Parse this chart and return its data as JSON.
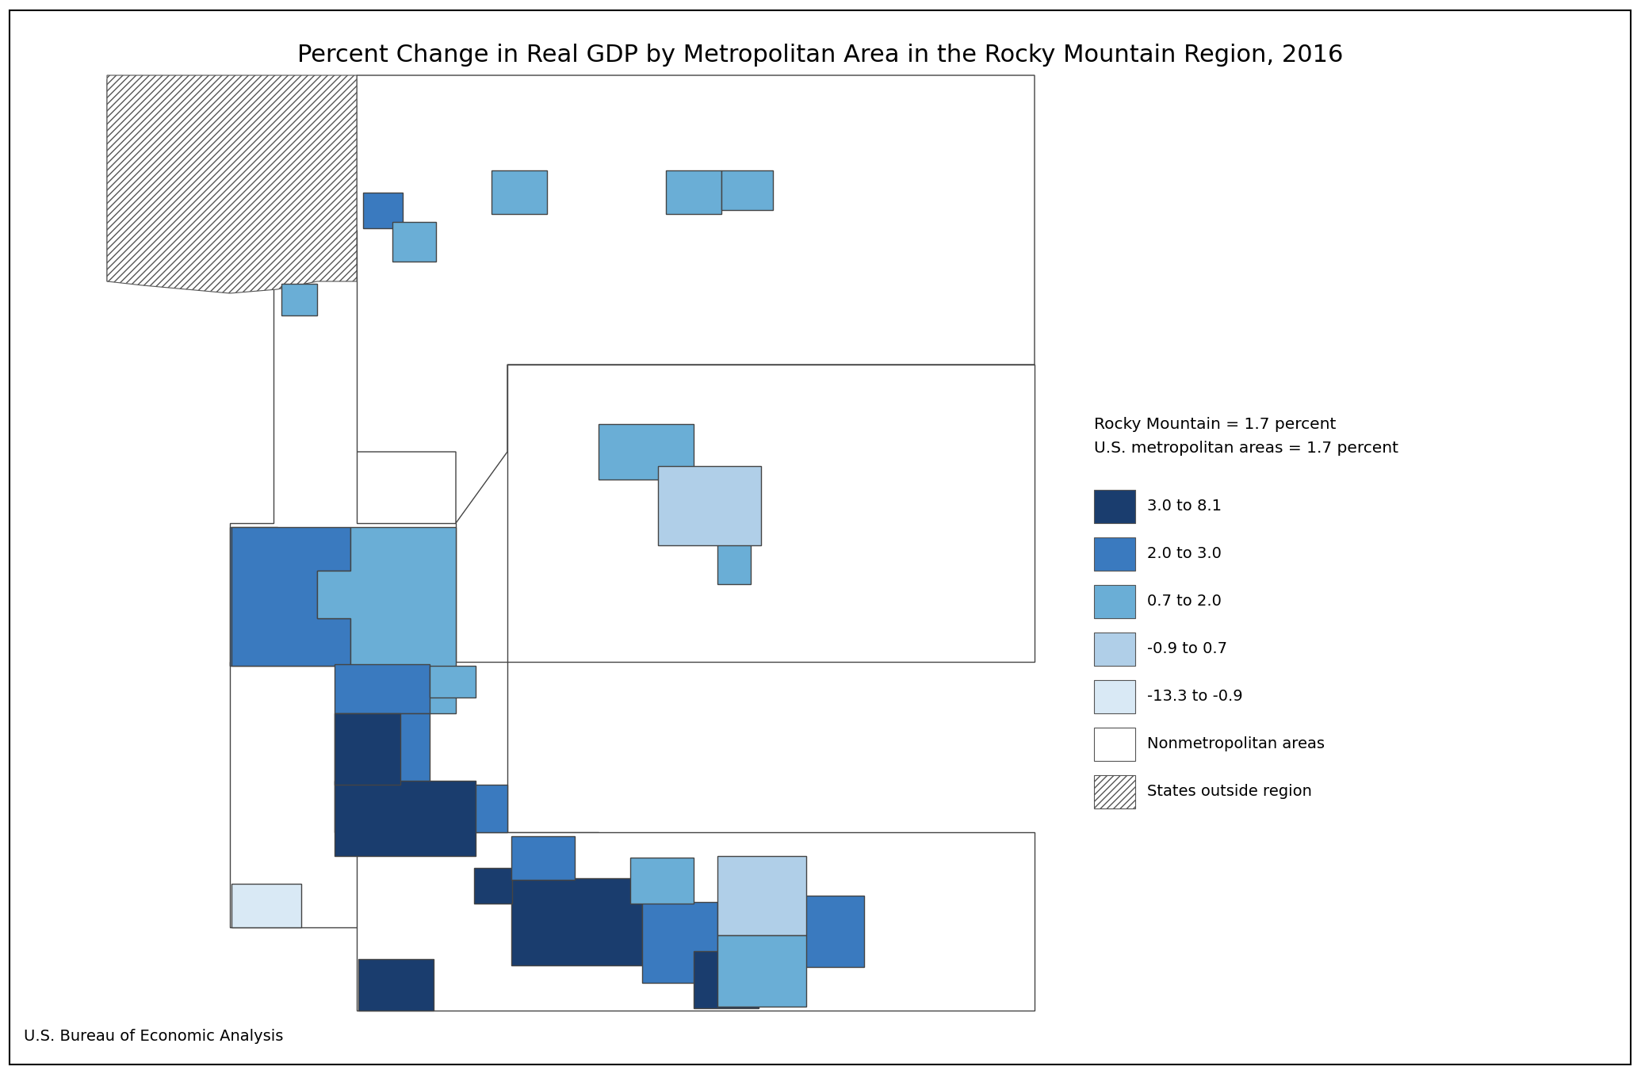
{
  "title": "Percent Change in Real GDP by Metropolitan Area in the Rocky Mountain Region, 2016",
  "subtitle_line1": "Rocky Mountain = 1.7 percent",
  "subtitle_line2": "U.S. metropolitan areas = 1.7 percent",
  "source": "U.S. Bureau of Economic Analysis",
  "color_dark_blue": "#1a3d6e",
  "color_med_blue": "#3a7abf",
  "color_light_blue": "#6aaed6",
  "color_lighter_blue": "#b0cfe8",
  "color_lightest_blue": "#d9e9f5",
  "color_white": "#ffffff",
  "color_border": "#444444",
  "background_color": "#ffffff",
  "fig_width": 20.7,
  "fig_height": 13.55
}
